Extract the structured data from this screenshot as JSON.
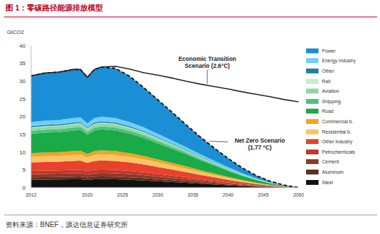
{
  "chart_data": {
    "type": "area",
    "title": "图 1：零碳路径能源排放模型",
    "source": "资料来源：BNEF，源达信息证券研究所",
    "y_label": "GtCO2",
    "stacked": true,
    "grid": false,
    "legend": "right",
    "x": [
      2012,
      2014,
      2016,
      2018,
      2019,
      2020,
      2021,
      2022,
      2024,
      2026,
      2028,
      2030,
      2032,
      2034,
      2036,
      2038,
      2040,
      2042,
      2044,
      2046,
      2048,
      2050
    ],
    "xlim": [
      2012,
      2050
    ],
    "xticks": [
      2012,
      2020,
      2025,
      2030,
      2035,
      2040,
      2045,
      2050
    ],
    "ylim": [
      0,
      40
    ],
    "yticks": [
      0,
      5,
      10,
      15,
      20,
      25,
      30,
      35,
      40
    ],
    "series": [
      {
        "name": "Steel",
        "color": "#111111",
        "values": [
          2.2,
          2.24,
          2.27,
          2.33,
          2.35,
          2.16,
          2.33,
          2.38,
          2.33,
          2.2,
          2.02,
          1.8,
          1.58,
          1.36,
          1.12,
          0.9,
          0.68,
          0.48,
          0.31,
          0.18,
          0.07,
          0
        ]
      },
      {
        "name": "Aluminum",
        "color": "#5a3020",
        "values": [
          0.7,
          0.71,
          0.72,
          0.74,
          0.75,
          0.69,
          0.74,
          0.76,
          0.74,
          0.7,
          0.64,
          0.57,
          0.5,
          0.43,
          0.36,
          0.29,
          0.22,
          0.15,
          0.1,
          0.06,
          0.02,
          0
        ]
      },
      {
        "name": "Cement",
        "color": "#8b3a2a",
        "values": [
          0.9,
          0.92,
          0.93,
          0.95,
          0.96,
          0.88,
          0.95,
          0.97,
          0.95,
          0.9,
          0.83,
          0.74,
          0.65,
          0.56,
          0.46,
          0.37,
          0.28,
          0.2,
          0.13,
          0.07,
          0.03,
          0
        ]
      },
      {
        "name": "Petrochemicals",
        "color": "#c0392b",
        "values": [
          0.9,
          0.92,
          0.93,
          0.95,
          0.96,
          0.88,
          0.95,
          0.97,
          0.95,
          0.9,
          0.83,
          0.74,
          0.65,
          0.56,
          0.46,
          0.37,
          0.28,
          0.2,
          0.13,
          0.07,
          0.03,
          0
        ]
      },
      {
        "name": "Other industry",
        "color": "#e8412c",
        "values": [
          2.4,
          2.45,
          2.47,
          2.54,
          2.57,
          2.35,
          2.54,
          2.59,
          2.54,
          2.4,
          2.21,
          1.97,
          1.73,
          1.49,
          1.22,
          0.98,
          0.74,
          0.53,
          0.34,
          0.19,
          0.07,
          0
        ]
      },
      {
        "name": "Residential b.",
        "color": "#f9c46a",
        "values": [
          1.6,
          1.63,
          1.65,
          1.7,
          1.71,
          1.57,
          1.7,
          1.73,
          1.7,
          1.6,
          1.47,
          1.31,
          1.15,
          0.99,
          0.82,
          0.66,
          0.5,
          0.35,
          0.22,
          0.13,
          0.05,
          0
        ]
      },
      {
        "name": "Commercial b.",
        "color": "#f7a21b",
        "values": [
          1,
          1.02,
          1.03,
          1.06,
          1.07,
          0.98,
          1.06,
          1.08,
          1.06,
          1,
          0.92,
          0.82,
          0.72,
          0.62,
          0.51,
          0.41,
          0.31,
          0.22,
          0.14,
          0.08,
          0.03,
          0
        ]
      },
      {
        "name": "Road",
        "color": "#1aaa48",
        "values": [
          5.5,
          5.61,
          5.67,
          5.83,
          5.89,
          5.39,
          5.83,
          5.94,
          5.83,
          5.5,
          5.06,
          4.51,
          3.96,
          3.41,
          2.81,
          2.26,
          1.71,
          1.21,
          0.77,
          0.44,
          0.17,
          0
        ]
      },
      {
        "name": "Shipping",
        "color": "#4cc27a",
        "values": [
          0.8,
          0.82,
          0.82,
          0.85,
          0.86,
          0.78,
          0.85,
          0.86,
          0.85,
          0.8,
          0.74,
          0.66,
          0.58,
          0.5,
          0.41,
          0.33,
          0.25,
          0.18,
          0.11,
          0.06,
          0.02,
          0
        ]
      },
      {
        "name": "Aviation",
        "color": "#8dd9a3",
        "values": [
          0.8,
          0.82,
          0.82,
          0.85,
          0.86,
          0.78,
          0.85,
          0.86,
          0.85,
          0.8,
          0.74,
          0.66,
          0.58,
          0.5,
          0.41,
          0.33,
          0.25,
          0.18,
          0.11,
          0.06,
          0.02,
          0
        ]
      },
      {
        "name": "Rail",
        "color": "#c7ecd0",
        "values": [
          0.2,
          0.2,
          0.21,
          0.21,
          0.21,
          0.2,
          0.21,
          0.22,
          0.21,
          0.2,
          0.18,
          0.16,
          0.14,
          0.12,
          0.1,
          0.08,
          0.06,
          0.04,
          0.03,
          0.02,
          0.01,
          0
        ]
      },
      {
        "name": "Other",
        "color": "#1f7fa8",
        "values": [
          0.3,
          0.31,
          0.31,
          0.32,
          0.32,
          0.29,
          0.32,
          0.32,
          0.32,
          0.3,
          0.28,
          0.25,
          0.22,
          0.19,
          0.15,
          0.12,
          0.09,
          0.07,
          0.04,
          0.02,
          0.01,
          0
        ]
      },
      {
        "name": "Energy industry",
        "color": "#6dcff6",
        "values": [
          1.2,
          1.22,
          1.24,
          1.27,
          1.28,
          1.18,
          1.27,
          1.3,
          1.27,
          1.2,
          1.1,
          0.98,
          0.86,
          0.74,
          0.61,
          0.49,
          0.37,
          0.26,
          0.17,
          0.1,
          0.04,
          0
        ]
      },
      {
        "name": "Power",
        "color": "#1a8fd6",
        "values": [
          13,
          13.4,
          13.5,
          13.7,
          13.5,
          13,
          13.7,
          14,
          14,
          12.9,
          11.2,
          9.6,
          8,
          6.3,
          4.9,
          3.6,
          2.5,
          1.5,
          0.8,
          0.3,
          0.1,
          0
        ]
      },
      {
        "name": "Economic Transition Scenario (2.6°C)",
        "type": "line",
        "color": "#222222",
        "values": [
          31.5,
          32.3,
          32.6,
          33.3,
          33.3,
          31.1,
          33.3,
          34.0,
          34.2,
          33.4,
          32.4,
          31.7,
          30.9,
          30.0,
          29.2,
          28.5,
          27.8,
          27.0,
          26.3,
          25.6,
          24.8,
          24.2
        ]
      }
    ],
    "outline": {
      "name": "Net Zero Scenario (1.77 °C)",
      "line_style": "dashed",
      "color": "#1a1a1a"
    }
  }
}
